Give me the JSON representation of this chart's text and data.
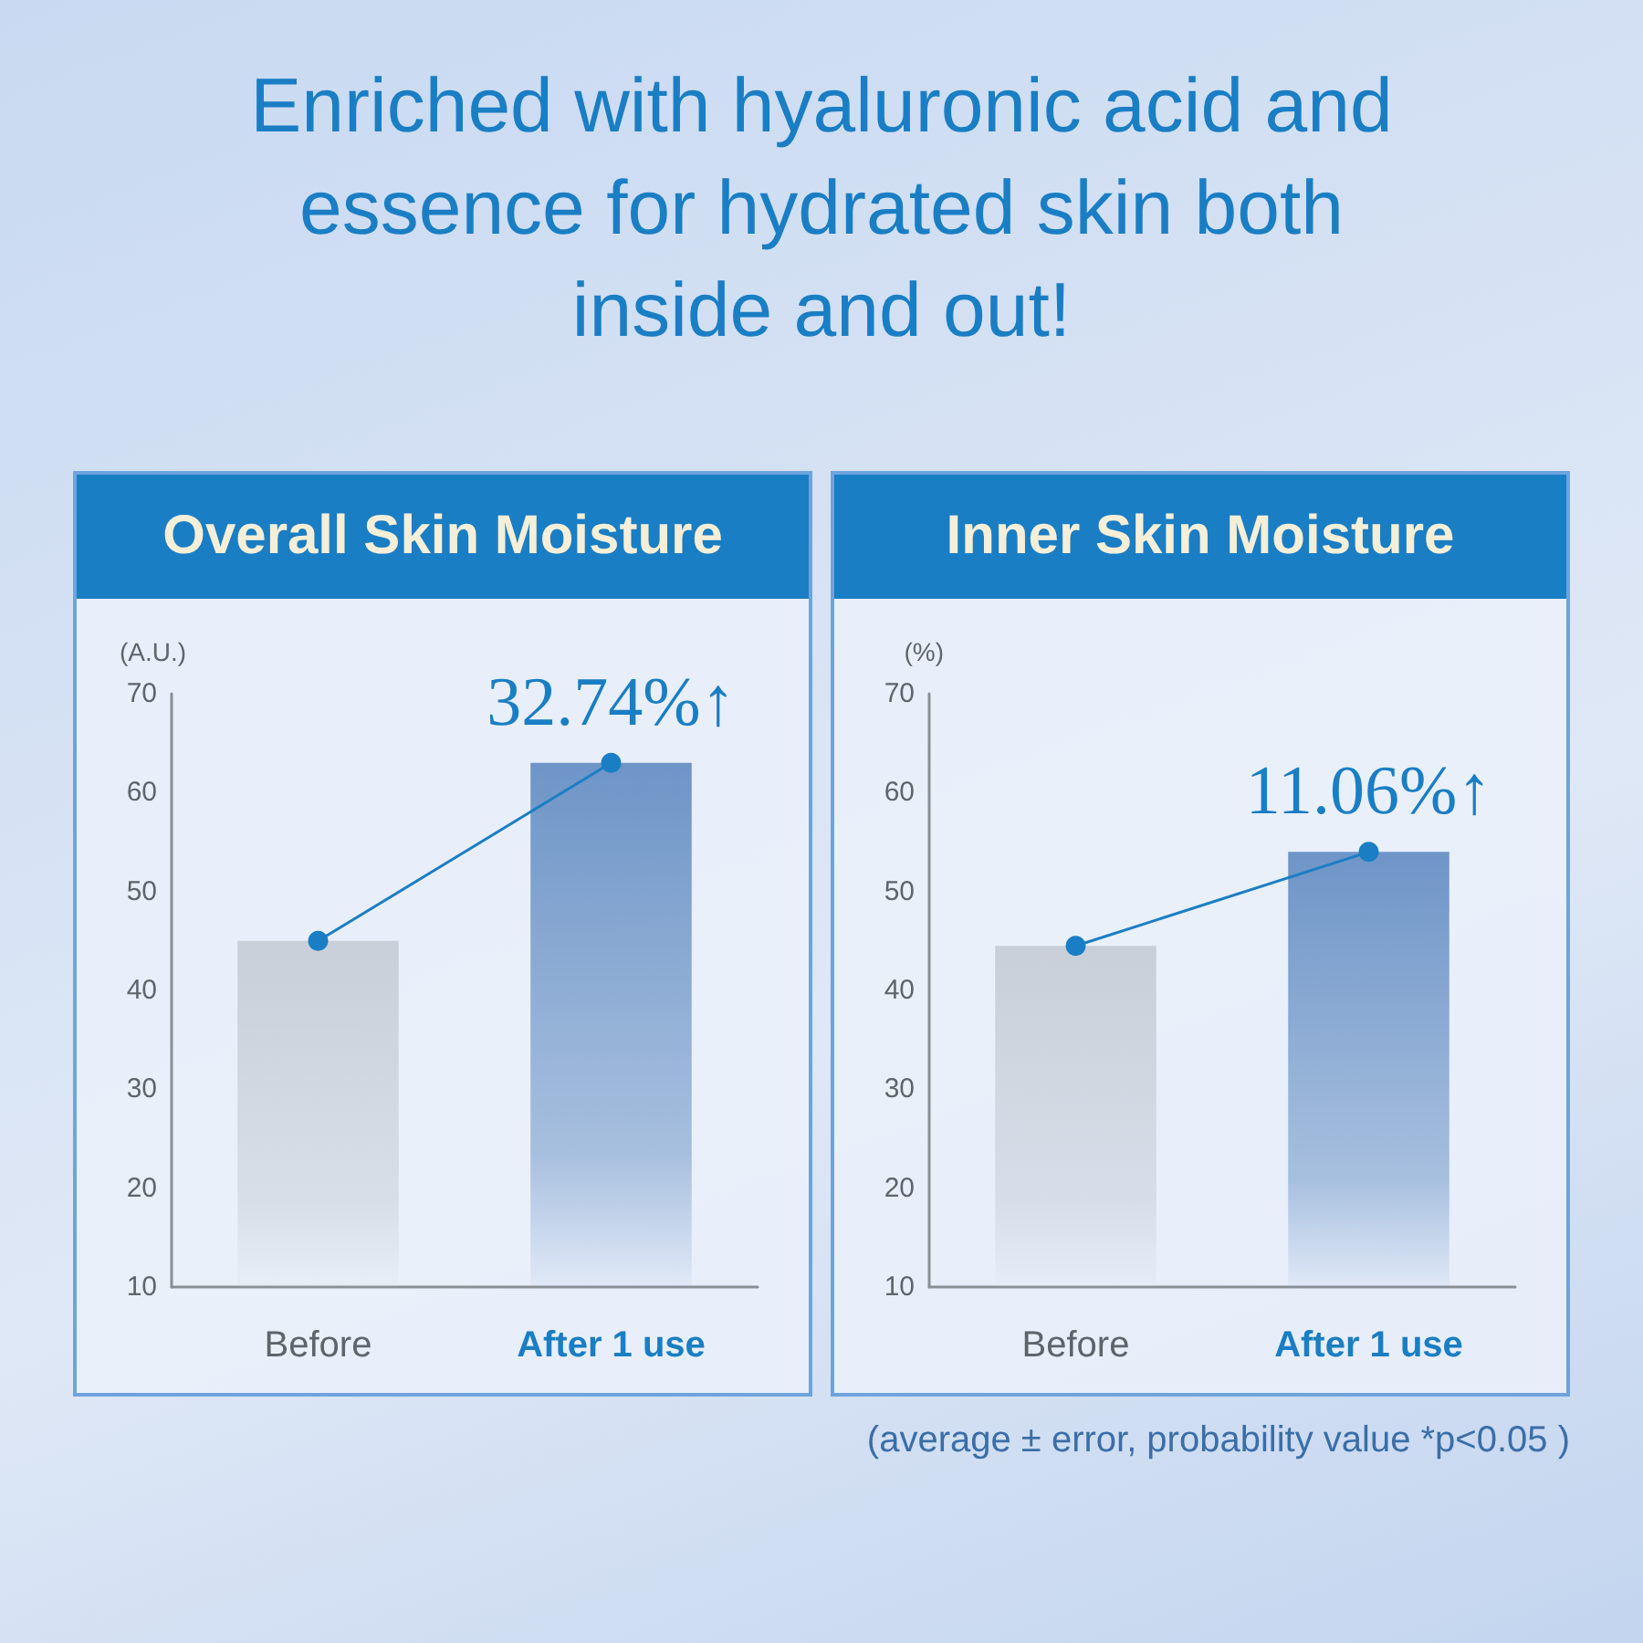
{
  "chart_data": [
    {
      "type": "bar",
      "title": "Overall Skin Moisture",
      "ylabel": "(A.U.)",
      "categories": [
        "Before",
        "After 1 use"
      ],
      "series": [
        {
          "colors": [
            "#c8cfd9",
            "#6e95c7"
          ],
          "values": [
            45,
            63
          ]
        },
        {
          "type": "line",
          "color": "#1a7ec4",
          "values": [
            45,
            63
          ],
          "marker": "circle"
        }
      ],
      "ylim": [
        10,
        70
      ],
      "yticks": [
        10,
        20,
        30,
        40,
        50,
        60,
        70
      ],
      "annotations": [
        "Enriched with hyaluronic acid and essence for hydrated skin both inside and out!",
        {
          "text": "32.74%↑",
          "x": "After 1 use",
          "y": 63
        }
      ]
    },
    {
      "type": "bar",
      "title": "Inner Skin Moisture",
      "ylabel": "(%)",
      "categories": [
        "Before",
        "After 1 use"
      ],
      "series": [
        {
          "colors": [
            "#c8cfd9",
            "#6e95c7"
          ],
          "values": [
            44.5,
            54
          ]
        },
        {
          "type": "line",
          "color": "#1a7ec4",
          "values": [
            44.5,
            54
          ],
          "marker": "circle"
        }
      ],
      "ylim": [
        10,
        70
      ],
      "yticks": [
        10,
        20,
        30,
        40,
        50,
        60,
        70
      ],
      "annotations": [
        {
          "text": "11.06%↑",
          "x": "After 1 use",
          "y": 54
        },
        "(average ± error, probability value *p<0.05 )"
      ]
    }
  ]
}
